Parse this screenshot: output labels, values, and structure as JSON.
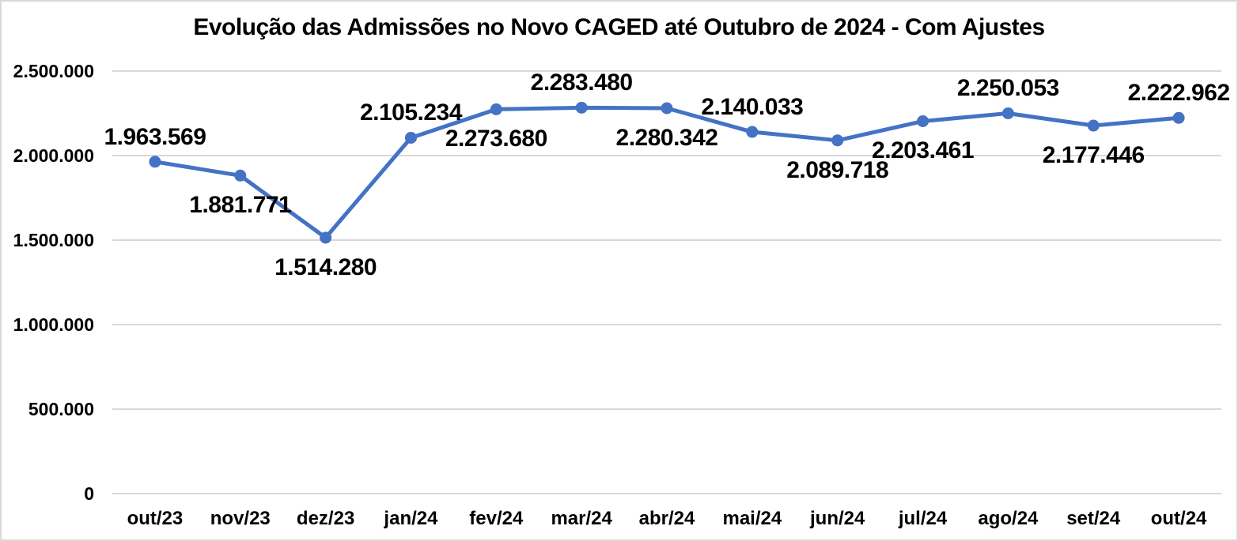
{
  "chart_data": {
    "type": "line",
    "title": "Evolução das Admissões no Novo CAGED até Outubro de 2024 - Com Ajustes",
    "categories": [
      "out/23",
      "nov/23",
      "dez/23",
      "jan/24",
      "fev/24",
      "mar/24",
      "abr/24",
      "mai/24",
      "jun/24",
      "jul/24",
      "ago/24",
      "set/24",
      "out/24"
    ],
    "series": [
      {
        "values": [
          1963569,
          1881771,
          1514280,
          2105234,
          2273680,
          2283480,
          2280342,
          2140033,
          2089718,
          2203461,
          2250053,
          2177446,
          2222962
        ],
        "data_labels": [
          "1.963.569",
          "1.881.771",
          "1.514.280",
          "2.105.234",
          "2.273.680",
          "2.283.480",
          "2.280.342",
          "2.140.033",
          "2.089.718",
          "2.203.461",
          "2.250.053",
          "2.177.446",
          "2.222.962"
        ],
        "label_positions": [
          "above",
          "below",
          "below",
          "above",
          "below",
          "above",
          "below",
          "above",
          "below",
          "below",
          "above",
          "below",
          "above"
        ],
        "color": "#4472C4"
      }
    ],
    "ylim": [
      0,
      2500000
    ],
    "ytick_step": 500000,
    "ytick_labels": [
      "0",
      "500.000",
      "1.000.000",
      "1.500.000",
      "2.000.000",
      "2.500.000"
    ],
    "grid": true,
    "legend_position": "none",
    "grid_color": "#D9D9D9",
    "text_color": "#000000",
    "background_color": "#FFFFFF",
    "border_color": "#D9D9D9"
  }
}
